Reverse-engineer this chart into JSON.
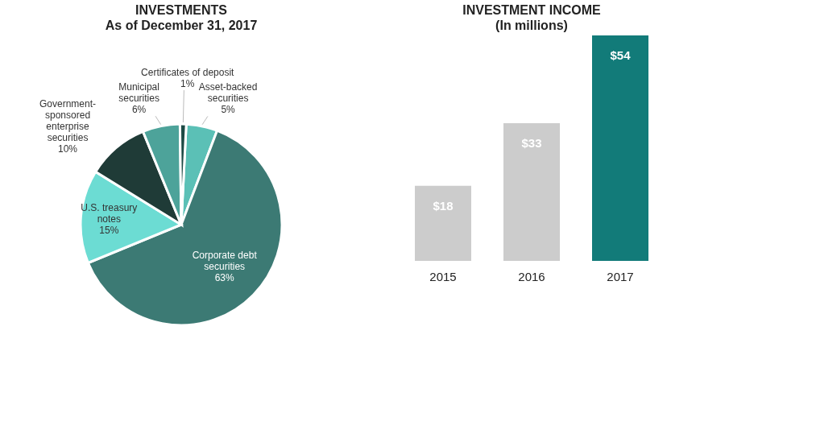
{
  "chart_data": [
    {
      "type": "pie",
      "title": "INVESTMENTS",
      "subtitle": "As of December 31, 2017",
      "categories": [
        "Asset-backed securities",
        "Corporate debt securities",
        "U.S. treasury notes",
        "Government-sponsored enterprise securities",
        "Municipal securities",
        "Certificates of deposit"
      ],
      "values": [
        5,
        63,
        15,
        10,
        6,
        1
      ],
      "value_labels": [
        "5%",
        "63%",
        "15%",
        "10%",
        "6%",
        "1%"
      ],
      "colors": [
        "#5bc0b6",
        "#3c7a74",
        "#6cdcd3",
        "#1f3b37",
        "#4da39a",
        "#1d4a45"
      ]
    },
    {
      "type": "bar",
      "title": "INVESTMENT INCOME",
      "subtitle": "(In millions)",
      "categories": [
        "2015",
        "2016",
        "2017"
      ],
      "values": [
        18,
        33,
        54
      ],
      "value_labels": [
        "$18",
        "$33",
        "$54"
      ],
      "colors": [
        "#cccccc",
        "#cccccc",
        "#127b79"
      ]
    }
  ]
}
